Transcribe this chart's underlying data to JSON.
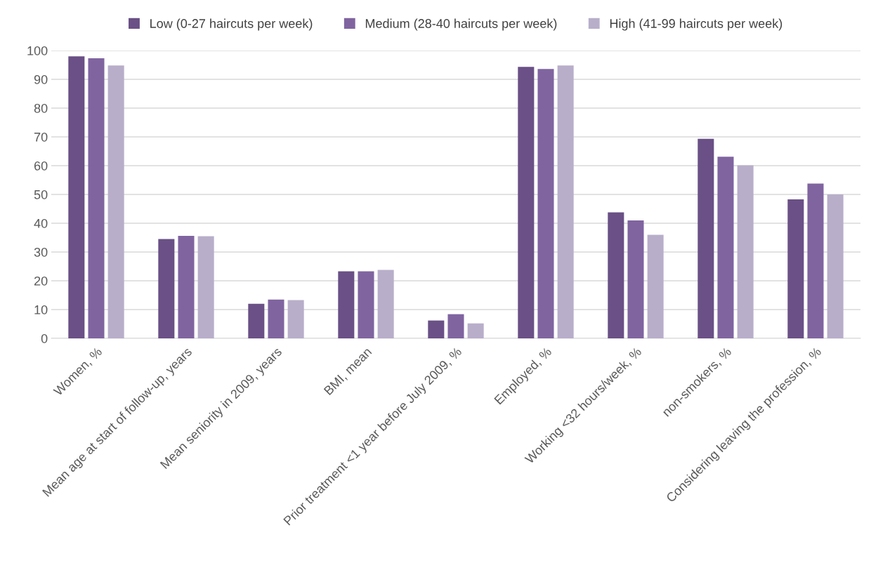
{
  "chart_data": {
    "type": "bar",
    "categories": [
      "Women, %",
      "Mean age at start of follow-up, years",
      "Mean seniority in 2009, years",
      "BMI, mean",
      "Prior treatment <1 year before July 2009, %",
      "Employed, %",
      "Working <32 hours/week, %",
      "non-smokers, %",
      "Considering leaving the profession, %"
    ],
    "series": [
      {
        "name": "Low (0-27 haircuts per week)",
        "color": "#6a5086",
        "values": [
          98,
          34.5,
          12,
          23.3,
          6.2,
          94.3,
          43.8,
          69.3,
          48.3
        ]
      },
      {
        "name": "Medium (28-40 haircuts per week)",
        "color": "#8064a0",
        "values": [
          97.3,
          35.6,
          13.5,
          23.3,
          8.4,
          93.6,
          41,
          63.1,
          53.8
        ]
      },
      {
        "name": "High (41-99 haircuts per week)",
        "color": "#b8aeca",
        "values": [
          94.8,
          35.5,
          13.3,
          23.8,
          5.2,
          94.8,
          36,
          60.1,
          50
        ]
      }
    ],
    "ylim": [
      0,
      100
    ],
    "yticks": [
      0,
      10,
      20,
      30,
      40,
      50,
      60,
      70,
      80,
      90,
      100
    ],
    "grid": "y",
    "legend": "top"
  }
}
